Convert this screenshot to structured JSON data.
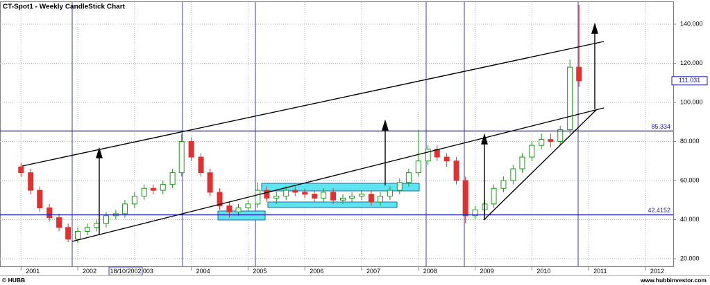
{
  "chart_data": {
    "type": "candlestick",
    "title": "CT-Spot1 - Weekly CandleStick Chart",
    "cursor_label": "18/10/2002",
    "watermark_left": "© HUBB",
    "watermark_right": "www.hubbinvestor.com",
    "last_price": 111.031,
    "hlines": [
      85.334,
      42.4152
    ],
    "up_color": "#1a9a1a",
    "down_color": "#e03030",
    "grid": true,
    "xlim": [
      2000.63,
      2012.49
    ],
    "xticks": [
      2001,
      2002,
      2003,
      2004,
      2005,
      2006,
      2007,
      2008,
      2009,
      2010,
      2011,
      2012
    ],
    "ylim": [
      16.1,
      150.6
    ],
    "yticks": [
      {
        "value": 20,
        "label": "20.000"
      },
      {
        "value": 40,
        "label": "40.000"
      },
      {
        "value": 60,
        "label": "60.000"
      },
      {
        "value": 80,
        "label": "80.000"
      },
      {
        "value": 100,
        "label": "100.000"
      },
      {
        "value": 120,
        "label": "120.000"
      },
      {
        "value": 140,
        "label": "140.000"
      }
    ],
    "x": [
      2001.0,
      2001.17,
      2001.33,
      2001.5,
      2001.67,
      2001.83,
      2002.0,
      2002.17,
      2002.33,
      2002.5,
      2002.67,
      2002.83,
      2003.0,
      2003.17,
      2003.33,
      2003.5,
      2003.67,
      2003.83,
      2004.0,
      2004.17,
      2004.33,
      2004.5,
      2004.67,
      2004.83,
      2005.0,
      2005.17,
      2005.33,
      2005.5,
      2005.67,
      2005.83,
      2006.0,
      2006.17,
      2006.33,
      2006.5,
      2006.67,
      2006.83,
      2007.0,
      2007.17,
      2007.33,
      2007.5,
      2007.67,
      2007.83,
      2008.0,
      2008.17,
      2008.33,
      2008.5,
      2008.67,
      2008.83,
      2009.0,
      2009.17,
      2009.33,
      2009.5,
      2009.67,
      2009.83,
      2010.0,
      2010.17,
      2010.33,
      2010.5,
      2010.67,
      2010.83
    ],
    "open": [
      67,
      64,
      55,
      46,
      41,
      36,
      30,
      34,
      36,
      38,
      42,
      43,
      48,
      52,
      56,
      55,
      58,
      64,
      80,
      72,
      64,
      54,
      47,
      44,
      46,
      48,
      55,
      51,
      52,
      55,
      54,
      53,
      51,
      54,
      50,
      51,
      52,
      53,
      49,
      52,
      55,
      59,
      64,
      70,
      76,
      72,
      70,
      60,
      42,
      45,
      48,
      56,
      60,
      66,
      72,
      78,
      81,
      80,
      86,
      118
    ],
    "high": [
      69,
      66,
      57,
      48,
      43,
      38,
      36,
      38,
      40,
      44,
      45,
      50,
      54,
      58,
      58,
      60,
      66,
      84,
      82,
      74,
      66,
      56,
      49,
      48,
      50,
      59,
      57,
      54,
      57,
      57,
      56,
      55,
      56,
      56,
      53,
      54,
      55,
      55,
      54,
      57,
      61,
      66,
      86,
      78,
      78,
      74,
      72,
      62,
      47,
      50,
      58,
      62,
      68,
      74,
      80,
      84,
      84,
      88,
      122,
      150
    ],
    "low": [
      62,
      53,
      44,
      39,
      34,
      28.5,
      28,
      32,
      34,
      36,
      40,
      41,
      46,
      50,
      53,
      53,
      56,
      62,
      70,
      62,
      52,
      45,
      41,
      42,
      44,
      46,
      49,
      48,
      50,
      52,
      51,
      49,
      49,
      48,
      48,
      49,
      50,
      47,
      47,
      50,
      53,
      57,
      62,
      68,
      70,
      67,
      58,
      38,
      40,
      43,
      46,
      54,
      58,
      64,
      70,
      76,
      77,
      78,
      84,
      108
    ],
    "close": [
      64,
      55,
      46,
      41,
      36,
      30,
      34,
      36,
      38,
      42,
      43,
      48,
      52,
      56,
      55,
      58,
      64,
      80,
      72,
      64,
      54,
      47,
      44,
      46,
      48,
      55,
      51,
      52,
      55,
      54,
      53,
      51,
      54,
      50,
      51,
      52,
      53,
      49,
      52,
      55,
      59,
      64,
      70,
      76,
      72,
      70,
      60,
      42,
      45,
      48,
      56,
      60,
      66,
      72,
      78,
      81,
      80,
      86,
      118,
      111
    ]
  }
}
